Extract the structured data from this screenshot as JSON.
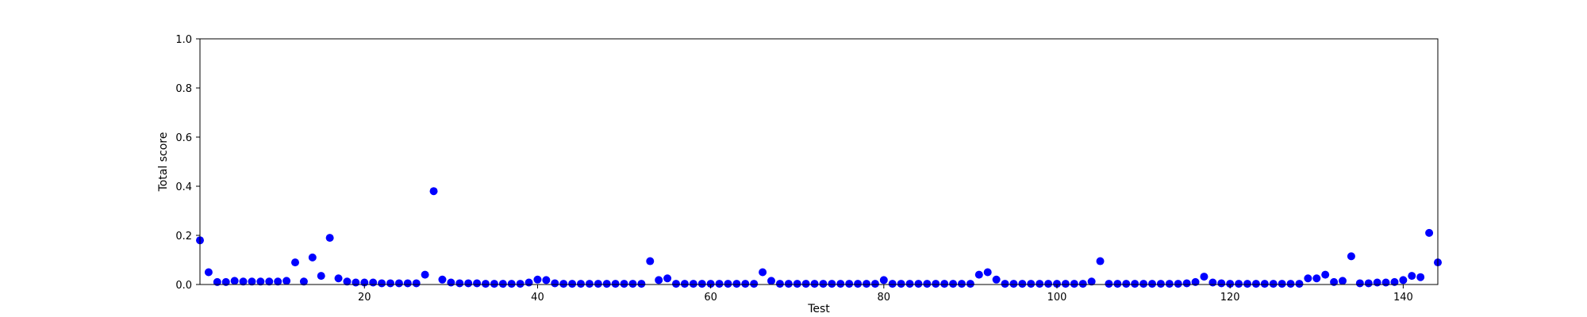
{
  "chart_data": {
    "type": "scatter",
    "title": "",
    "xlabel": "Test",
    "ylabel": "Total score",
    "xlim": [
      1,
      144
    ],
    "ylim": [
      0,
      1.0
    ],
    "xticks": [
      20,
      40,
      60,
      80,
      100,
      120,
      140
    ],
    "yticks": [
      0.0,
      0.2,
      0.4,
      0.6,
      0.8,
      1.0
    ],
    "ytick_labels": [
      "0.0",
      "0.2",
      "0.4",
      "0.6",
      "0.8",
      "1.0"
    ],
    "grid": false,
    "marker_color": "#0000ff",
    "x": [
      1,
      2,
      3,
      4,
      5,
      6,
      7,
      8,
      9,
      10,
      11,
      12,
      13,
      14,
      15,
      16,
      17,
      18,
      19,
      20,
      21,
      22,
      23,
      24,
      25,
      26,
      27,
      28,
      29,
      30,
      31,
      32,
      33,
      34,
      35,
      36,
      37,
      38,
      39,
      40,
      41,
      42,
      43,
      44,
      45,
      46,
      47,
      48,
      49,
      50,
      51,
      52,
      53,
      54,
      55,
      56,
      57,
      58,
      59,
      60,
      61,
      62,
      63,
      64,
      65,
      66,
      67,
      68,
      69,
      70,
      71,
      72,
      73,
      74,
      75,
      76,
      77,
      78,
      79,
      80,
      81,
      82,
      83,
      84,
      85,
      86,
      87,
      88,
      89,
      90,
      91,
      92,
      93,
      94,
      95,
      96,
      97,
      98,
      99,
      100,
      101,
      102,
      103,
      104,
      105,
      106,
      107,
      108,
      109,
      110,
      111,
      112,
      113,
      114,
      115,
      116,
      117,
      118,
      119,
      120,
      121,
      122,
      123,
      124,
      125,
      126,
      127,
      128,
      129,
      130,
      131,
      132,
      133,
      134,
      135,
      136,
      137,
      138,
      139,
      140,
      141,
      142,
      143,
      144
    ],
    "y": [
      0.18,
      0.05,
      0.01,
      0.01,
      0.015,
      0.012,
      0.012,
      0.012,
      0.012,
      0.012,
      0.015,
      0.09,
      0.012,
      0.11,
      0.035,
      0.19,
      0.025,
      0.012,
      0.008,
      0.008,
      0.008,
      0.005,
      0.005,
      0.005,
      0.005,
      0.005,
      0.04,
      0.38,
      0.02,
      0.008,
      0.005,
      0.005,
      0.005,
      0.003,
      0.003,
      0.003,
      0.003,
      0.003,
      0.008,
      0.02,
      0.018,
      0.005,
      0.003,
      0.003,
      0.003,
      0.003,
      0.003,
      0.003,
      0.003,
      0.003,
      0.003,
      0.003,
      0.095,
      0.018,
      0.025,
      0.003,
      0.003,
      0.003,
      0.003,
      0.003,
      0.003,
      0.003,
      0.003,
      0.003,
      0.003,
      0.05,
      0.015,
      0.003,
      0.003,
      0.003,
      0.003,
      0.003,
      0.003,
      0.003,
      0.003,
      0.003,
      0.003,
      0.003,
      0.003,
      0.018,
      0.003,
      0.003,
      0.003,
      0.003,
      0.003,
      0.003,
      0.003,
      0.003,
      0.003,
      0.003,
      0.04,
      0.05,
      0.02,
      0.003,
      0.003,
      0.003,
      0.003,
      0.003,
      0.003,
      0.003,
      0.003,
      0.003,
      0.003,
      0.012,
      0.095,
      0.003,
      0.003,
      0.003,
      0.003,
      0.003,
      0.003,
      0.003,
      0.003,
      0.003,
      0.005,
      0.01,
      0.032,
      0.008,
      0.005,
      0.003,
      0.003,
      0.003,
      0.003,
      0.003,
      0.003,
      0.003,
      0.003,
      0.003,
      0.025,
      0.025,
      0.04,
      0.01,
      0.015,
      0.115,
      0.005,
      0.005,
      0.008,
      0.008,
      0.01,
      0.018,
      0.035,
      0.03,
      0.21,
      0.09
    ]
  }
}
